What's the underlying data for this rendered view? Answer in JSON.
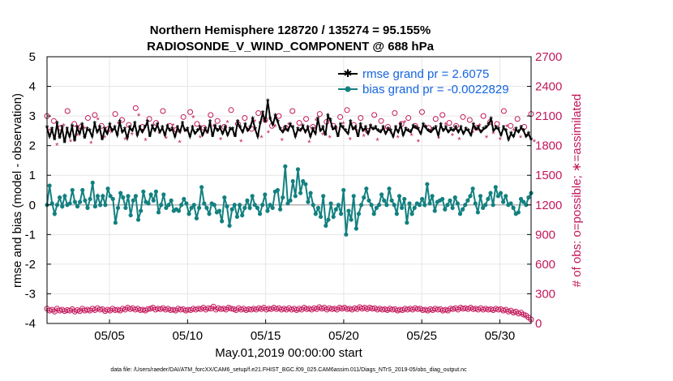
{
  "chart_data": {
    "type": "line",
    "title_line1": "Northern Hemisphere 128720 / 135274 = 95.155%",
    "title_line2": "RADIOSONDE_V_WIND_COMPONENT @ 688 hPa",
    "xlabel": "May.01,2019 00:00:00 start",
    "ylabel_left": "rmse and bias (model - observation)",
    "ylabel_right": "# of obs: o=possible; ∗=assimilated",
    "ylim_left": [
      -4,
      5
    ],
    "yticks_left": [
      "-4",
      "-3",
      "-2",
      "-1",
      "0",
      "1",
      "2",
      "3",
      "4",
      "5"
    ],
    "ylim_right": [
      0,
      2700
    ],
    "yticks_right": [
      "0",
      "300",
      "600",
      "900",
      "1200",
      "1500",
      "1800",
      "2100",
      "2400",
      "2700"
    ],
    "xlim": [
      1,
      32
    ],
    "xtick_values": [
      5,
      10,
      15,
      20,
      25,
      30
    ],
    "xtick_labels": [
      "05/05",
      "05/10",
      "05/15",
      "05/20",
      "05/25",
      "05/30"
    ],
    "legend": {
      "rmse_label": "rmse grand pr = 2.6075",
      "bias_label": "bias grand pr = -0.0022829"
    },
    "colors": {
      "rmse": "#000000",
      "bias": "#138080",
      "obs": "#c2185b",
      "legend_text": "#1565e0",
      "zero_line": "#b0b0b0",
      "grid": "#e6e6e6"
    },
    "series": [
      {
        "name": "rmse",
        "values": [
          2.6,
          2.3,
          2.55,
          2.2,
          2.75,
          2.25,
          2.6,
          2.1,
          2.55,
          2.3,
          2.65,
          2.15,
          2.6,
          2.4,
          2.7,
          2.25,
          2.55,
          2.5,
          2.3,
          2.75,
          2.45,
          2.6,
          2.2,
          2.55,
          2.4,
          2.7,
          2.5,
          2.6,
          2.35,
          2.8,
          2.45,
          2.55,
          2.25,
          2.6,
          2.5,
          2.75,
          2.35,
          2.6,
          2.45,
          2.6,
          2.8,
          2.3,
          2.65,
          2.5,
          2.7,
          2.45,
          2.6,
          2.35,
          2.65,
          2.5,
          2.55,
          2.3,
          2.6,
          2.45,
          2.75,
          2.5,
          2.55,
          2.3,
          2.6,
          2.4,
          2.5,
          2.6,
          2.35,
          2.55,
          2.45,
          2.8,
          2.3,
          2.65,
          2.5,
          2.6,
          2.4,
          2.6,
          2.35,
          2.55,
          2.55,
          2.3,
          2.8,
          2.6,
          2.45,
          2.7,
          2.5,
          2.6,
          2.9,
          2.55,
          2.3,
          2.75,
          3.1,
          2.8,
          3.5,
          2.9,
          2.7,
          3.0,
          2.8,
          2.55,
          2.45,
          2.6,
          2.5,
          2.7,
          2.6,
          2.3,
          2.55,
          2.5,
          2.65,
          2.45,
          2.6,
          2.3,
          2.55,
          2.4,
          2.9,
          2.5,
          2.6,
          2.35,
          3.0,
          2.85,
          2.55,
          2.6,
          2.3,
          2.7,
          2.6,
          2.5,
          2.4,
          2.8,
          2.55,
          2.6,
          2.3,
          2.7,
          2.5,
          2.6,
          2.4,
          2.65,
          2.55,
          2.6,
          2.5,
          2.45,
          2.6,
          2.4,
          2.55,
          2.5,
          2.3,
          2.6,
          2.45,
          2.7,
          2.35,
          2.55,
          2.5,
          2.45,
          2.65,
          2.6,
          2.55,
          2.4,
          2.7,
          2.6,
          2.5,
          2.45,
          2.55,
          2.6,
          2.35,
          2.7,
          2.5,
          2.6,
          2.45,
          2.55,
          2.5,
          2.6,
          2.45,
          2.6,
          2.4,
          2.55,
          2.5,
          2.35,
          2.7,
          2.55,
          2.6,
          2.45,
          2.55,
          2.6,
          2.7,
          2.9,
          2.5,
          2.6,
          2.55,
          2.35,
          2.6,
          2.5,
          2.2,
          2.4,
          2.3,
          2.55,
          2.45,
          2.6,
          2.5,
          2.3,
          2.4,
          2.2
        ]
      },
      {
        "name": "bias",
        "values": [
          0.0,
          0.65,
          0.05,
          -0.3,
          0.0,
          0.25,
          -0.05,
          0.3,
          0.0,
          0.05,
          0.5,
          0.1,
          -0.05,
          0.1,
          0.5,
          0.15,
          -0.1,
          0.2,
          0.75,
          -0.05,
          0.3,
          0.0,
          0.3,
          0.0,
          0.55,
          0.3,
          0.2,
          -0.6,
          -0.1,
          0.4,
          0.25,
          -0.1,
          0.3,
          -0.35,
          0.15,
          0.3,
          -0.5,
          -0.2,
          0.45,
          0.1,
          0.05,
          0.35,
          0.15,
          0.45,
          -0.25,
          0.0,
          0.35,
          -0.1,
          0.0,
          0.15,
          -0.2,
          -0.15,
          -0.2,
          0.0,
          0.2,
          0.05,
          -0.3,
          -0.1,
          0.0,
          -0.45,
          -0.1,
          0.6,
          0.05,
          -0.1,
          -0.3,
          0.05,
          0.0,
          -0.25,
          -0.2,
          -0.55,
          0.25,
          -0.05,
          -0.7,
          -0.15,
          0.0,
          -0.4,
          0.0,
          -0.35,
          -0.1,
          0.15,
          -0.1,
          0.3,
          0.0,
          -0.1,
          -0.3,
          0.0,
          0.35,
          -0.2,
          0.0,
          -0.1,
          0.45,
          0.5,
          -0.15,
          0.25,
          1.3,
          0.05,
          0.15,
          0.8,
          0.3,
          1.2,
          0.4,
          0.8,
          0.7,
          0.1,
          0.4,
          0.0,
          -0.3,
          -0.1,
          -0.4,
          0.3,
          -0.7,
          -0.5,
          0.05,
          -0.4,
          -0.15,
          0.0,
          -0.3,
          0.5,
          -1.0,
          -0.2,
          -0.5,
          0.3,
          -0.8,
          -0.3,
          0.0,
          0.25,
          0.55,
          0.15,
          0.0,
          -0.3,
          -0.1,
          0.0,
          0.35,
          0.15,
          0.0,
          0.55,
          0.15,
          0.0,
          -0.3,
          0.3,
          -0.1,
          0.2,
          -0.6,
          0.05,
          -0.3,
          -0.1,
          0.05,
          0.0,
          0.2,
          0.0,
          0.7,
          0.05,
          0.3,
          -0.2,
          0.1,
          0.15,
          0.2,
          -0.15,
          0.0,
          0.15,
          -0.1,
          0.25,
          0.05,
          -0.3,
          -0.15,
          0.0,
          0.15,
          0.3,
          0.55,
          0.05,
          -0.25,
          0.3,
          -0.1,
          0.0,
          0.2,
          0.4,
          0.0,
          0.6,
          0.3,
          0.4,
          0.1,
          0.3,
          0.0,
          0.05,
          -0.1,
          -0.3,
          -0.25,
          0.2,
          0.1,
          0.0,
          0.25,
          0.4
        ]
      },
      {
        "name": "obs_possible",
        "values": [
          150,
          130,
          140,
          120,
          150,
          130,
          140,
          125,
          135,
          130,
          145,
          120,
          135,
          125,
          150,
          130,
          140,
          130,
          150,
          135,
          155,
          140,
          145,
          125,
          140,
          130,
          150,
          135,
          140,
          130,
          150,
          140,
          160,
          145,
          155,
          140,
          150,
          135,
          140,
          130,
          145,
          150,
          160,
          140,
          150,
          145,
          155,
          140,
          150,
          135,
          140,
          130,
          150,
          140,
          145,
          130,
          140,
          135,
          150,
          140,
          150,
          145,
          160,
          140,
          155,
          150,
          170,
          140,
          155,
          145,
          150,
          140,
          160,
          150,
          145,
          135,
          155,
          140,
          150,
          135,
          145,
          140,
          150,
          140,
          155,
          145,
          160,
          140,
          150,
          145,
          160,
          145,
          155,
          140,
          150,
          140,
          155,
          140,
          150,
          135,
          150,
          140,
          160,
          145,
          150,
          140,
          155,
          145,
          165,
          150,
          160,
          140,
          155,
          145,
          150,
          140,
          160,
          150,
          160,
          145,
          150,
          140,
          155,
          145,
          165,
          150,
          160,
          145,
          160,
          150,
          155,
          140,
          150,
          140,
          145,
          135,
          150,
          140,
          145,
          130,
          140,
          135,
          150,
          140,
          150,
          140,
          155,
          145,
          150,
          135,
          140,
          130,
          145,
          135,
          150,
          140,
          145,
          130,
          140,
          130,
          150,
          145,
          155,
          140,
          160,
          150,
          155,
          145,
          160,
          145,
          150,
          140,
          155,
          140,
          150,
          140,
          145,
          135,
          150,
          140,
          145,
          130,
          140,
          120,
          130,
          110,
          120,
          100,
          110,
          90,
          80,
          60,
          40
        ]
      },
      {
        "name": "obs_assimilated",
        "values": [
          140,
          120,
          130,
          110,
          140,
          120,
          130,
          115,
          125,
          120,
          135,
          110,
          125,
          115,
          140,
          120,
          130,
          120,
          140,
          125,
          145,
          130,
          135,
          115,
          130,
          120,
          140,
          125,
          130,
          120,
          140,
          130,
          150,
          135,
          145,
          130,
          140,
          125,
          130,
          120,
          135,
          140,
          150,
          130,
          140,
          135,
          145,
          130,
          140,
          125,
          130,
          120,
          140,
          130,
          135,
          120,
          130,
          125,
          140,
          130,
          140,
          135,
          150,
          130,
          145,
          140,
          160,
          130,
          145,
          135,
          140,
          130,
          150,
          140,
          135,
          125,
          145,
          130,
          140,
          125,
          135,
          130,
          140,
          130,
          145,
          135,
          150,
          130,
          140,
          135,
          150,
          135,
          145,
          130,
          140,
          130,
          145,
          130,
          140,
          125,
          140,
          130,
          150,
          135,
          140,
          130,
          145,
          135,
          155,
          140,
          150,
          130,
          145,
          135,
          140,
          130,
          150,
          140,
          150,
          135,
          140,
          130,
          145,
          135,
          155,
          140,
          150,
          135,
          150,
          140,
          145,
          130,
          140,
          130,
          135,
          125,
          140,
          130,
          135,
          120,
          130,
          125,
          140,
          130,
          140,
          130,
          145,
          135,
          140,
          125,
          130,
          120,
          135,
          125,
          140,
          130,
          135,
          120,
          130,
          120,
          140,
          135,
          145,
          130,
          150,
          140,
          145,
          135,
          150,
          135,
          140,
          130,
          145,
          130,
          140,
          130,
          135,
          125,
          140,
          130,
          135,
          120,
          130,
          110,
          120,
          100,
          110,
          90,
          100,
          80,
          70,
          50,
          30
        ]
      },
      {
        "name": "obs_possible_top",
        "values": [
          2100,
          2050,
          1980,
          2150,
          2020,
          1990,
          2080,
          2110,
          2000,
          1970,
          2120,
          2060,
          2010,
          2180,
          1990,
          2070,
          2030,
          2150,
          2000,
          1960,
          2090,
          2140,
          2020,
          1980,
          2110,
          2050,
          1990,
          2160,
          2020,
          2080,
          1970,
          2130,
          2060,
          2000,
          2100,
          1980,
          2150,
          2030,
          2070,
          1990,
          2120,
          2040,
          2000,
          2090,
          2160,
          2010,
          2080,
          1950,
          2110,
          2050,
          1990,
          2130,
          2020,
          2080,
          2000,
          2140,
          1980,
          2070,
          2110,
          2030,
          2000,
          2090,
          2060,
          1980,
          2100,
          2040,
          2020,
          2150,
          2000,
          2070,
          1990,
          2120
        ]
      },
      {
        "name": "obs_assimilated_top",
        "values": [
          1950,
          1800,
          2000,
          1840,
          1900,
          1970,
          1820,
          2060,
          1880,
          1930,
          2020,
          1860,
          1910,
          2100,
          1850,
          1990,
          1920,
          1870,
          2000,
          1830,
          1940,
          2080,
          1880,
          1920,
          1990,
          1860,
          2030,
          1900,
          1840,
          1960,
          2040,
          1880,
          1930,
          1990,
          1850,
          2010,
          1900,
          1960,
          1830,
          2050,
          1910,
          1880,
          1970,
          2020,
          1860,
          1940,
          1890,
          2000,
          1850,
          1960,
          1920,
          1880,
          2030,
          1900,
          1840,
          1990,
          1950,
          1870,
          2010,
          1900,
          1860,
          1960,
          1930,
          2000,
          1880,
          1920,
          1860,
          1990,
          1950,
          1880,
          1900,
          1840
        ]
      }
    ]
  },
  "footer": "data file: /Users/raeder/DAI/ATM_forcXX/CAM6_setup/f.e21.FHIST_BGC.f09_025.CAM6assim.011/Diags_NTrS_2019-05/obs_diag_output.nc"
}
